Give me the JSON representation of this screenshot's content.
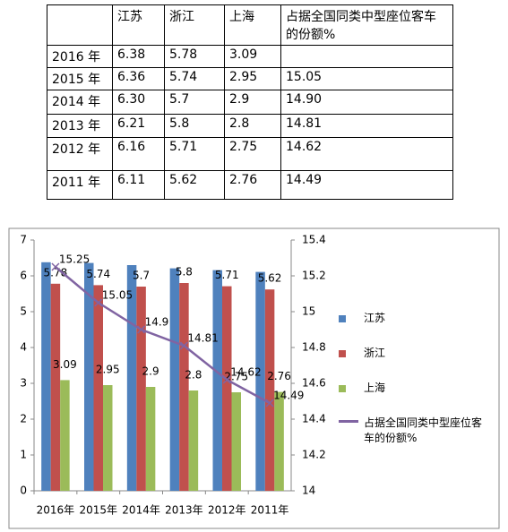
{
  "table": {
    "header": [
      "",
      "江苏",
      "浙江",
      "上海",
      "占据全国同类中型座位客车的份额%"
    ],
    "rows": [
      [
        "2016 年",
        "6.38",
        "5.78",
        "3.09",
        null
      ],
      [
        "2015 年",
        "6.36",
        "5.74",
        "2.95",
        "15.05"
      ],
      [
        "2014 年",
        "6.30",
        "5.7",
        "2.9",
        "14.90"
      ],
      [
        "2013 年",
        "6.21",
        "5.8",
        "2.8",
        "14.81"
      ],
      [
        "2012 年",
        "6.16",
        "5.71",
        "2.75",
        "14.62"
      ],
      [
        "2011 年",
        "6.11",
        "5.62",
        "2.76",
        "14.49"
      ]
    ]
  },
  "chart_data": {
    "type": "bar",
    "categories": [
      "2016年",
      "2015年",
      "2014年",
      "2013年",
      "2012年",
      "2011年"
    ],
    "series": [
      {
        "name": "江苏",
        "color": "#4f81bd",
        "values": [
          6.38,
          6.36,
          6.3,
          6.21,
          6.16,
          6.11
        ],
        "data_labels": false
      },
      {
        "name": "浙江",
        "color": "#c0504d",
        "values": [
          5.78,
          5.74,
          5.7,
          5.8,
          5.71,
          5.62
        ],
        "data_labels": true
      },
      {
        "name": "上海",
        "color": "#9bbb59",
        "values": [
          3.09,
          2.95,
          2.9,
          2.8,
          2.75,
          2.76
        ],
        "data_labels": true
      },
      {
        "name": "占据全国同类中型座位客车的份额%",
        "color": "#8064a2",
        "type": "line",
        "axis": "y2",
        "values": [
          15.25,
          15.05,
          14.9,
          14.81,
          14.62,
          14.49
        ],
        "data_labels": true
      }
    ],
    "ylim": [
      0,
      7
    ],
    "yticks": [
      0,
      1,
      2,
      3,
      4,
      5,
      6,
      7
    ],
    "y2lim": [
      14,
      15.4
    ],
    "y2ticks": [
      14,
      14.2,
      14.4,
      14.6,
      14.8,
      15,
      15.2,
      15.4
    ],
    "legend": "right"
  }
}
